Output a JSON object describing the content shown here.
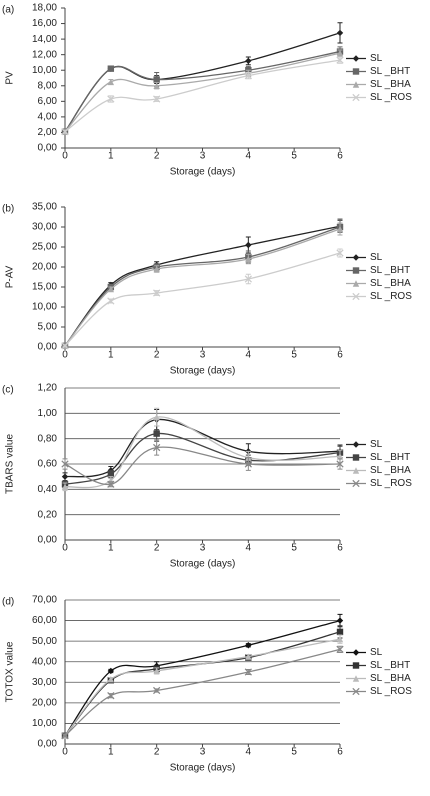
{
  "chart_data": [
    {
      "type": "line",
      "panel_label": "(a)",
      "y_label": "PV",
      "x_label": "Storage (days)",
      "grid": false,
      "x": [
        0,
        1,
        2,
        4,
        6
      ],
      "xlim": [
        0,
        6
      ],
      "xticks": [
        0,
        1,
        2,
        3,
        4,
        5,
        6
      ],
      "ylim": [
        0,
        18
      ],
      "yticks": [
        {
          "value": 0,
          "label": "0,00"
        },
        {
          "value": 2,
          "label": "2,00"
        },
        {
          "value": 4,
          "label": "4,00"
        },
        {
          "value": 6,
          "label": "6,00"
        },
        {
          "value": 8,
          "label": "8,00"
        },
        {
          "value": 10,
          "label": "10,00"
        },
        {
          "value": 12,
          "label": "12,00"
        },
        {
          "value": 14,
          "label": "14,00"
        },
        {
          "value": 16,
          "label": "16,00"
        },
        {
          "value": 18,
          "label": "18,00"
        }
      ],
      "series": [
        {
          "name": "SL",
          "color": "#222222",
          "marker": "diamond",
          "values": [
            2.1,
            10.2,
            8.8,
            11.2,
            14.8
          ],
          "errors": [
            0.2,
            0.3,
            0.5,
            0.5,
            1.3
          ]
        },
        {
          "name": "SL _BHT",
          "color": "#666666",
          "marker": "square",
          "values": [
            2.1,
            10.2,
            8.8,
            10.0,
            12.4
          ],
          "errors": [
            0.2,
            0.3,
            0.9,
            0.5,
            0.6
          ]
        },
        {
          "name": "SL _BHA",
          "color": "#aaaaaa",
          "marker": "triangle",
          "values": [
            2.1,
            8.5,
            8.0,
            9.6,
            12.2
          ],
          "errors": [
            0.2,
            0.3,
            0.4,
            0.4,
            0.4
          ]
        },
        {
          "name": "SL _ROS",
          "color": "#cccccc",
          "marker": "cross",
          "values": [
            2.1,
            6.3,
            6.3,
            9.3,
            11.3
          ],
          "errors": [
            0.2,
            0.4,
            0.3,
            0.4,
            0.4
          ]
        }
      ]
    },
    {
      "type": "line",
      "panel_label": "(b)",
      "y_label": "P-AV",
      "x_label": "Storage (days)",
      "grid": false,
      "x": [
        0,
        1,
        2,
        4,
        6
      ],
      "xlim": [
        0,
        6
      ],
      "xticks": [
        0,
        1,
        2,
        3,
        4,
        5,
        6
      ],
      "ylim": [
        0,
        35
      ],
      "yticks": [
        {
          "value": 0,
          "label": "0,00"
        },
        {
          "value": 5,
          "label": "5,00"
        },
        {
          "value": 10,
          "label": "10,00"
        },
        {
          "value": 15,
          "label": "15,00"
        },
        {
          "value": 20,
          "label": "20,00"
        },
        {
          "value": 25,
          "label": "25,00"
        },
        {
          "value": 30,
          "label": "30,00"
        },
        {
          "value": 35,
          "label": "35,00"
        }
      ],
      "series": [
        {
          "name": "SL",
          "color": "#222222",
          "marker": "diamond",
          "values": [
            0.3,
            15.5,
            20.5,
            25.5,
            30.2
          ],
          "errors": [
            0.2,
            0.6,
            0.8,
            2.0,
            1.5
          ]
        },
        {
          "name": "SL _BHT",
          "color": "#666666",
          "marker": "square",
          "values": [
            0.3,
            15.0,
            20.0,
            22.5,
            30.0
          ],
          "errors": [
            0.2,
            0.6,
            0.8,
            1.5,
            2.0
          ]
        },
        {
          "name": "SL _BHA",
          "color": "#aaaaaa",
          "marker": "triangle",
          "values": [
            0.3,
            14.5,
            19.5,
            22.0,
            29.5
          ],
          "errors": [
            0.2,
            0.5,
            0.8,
            1.2,
            1.5
          ]
        },
        {
          "name": "SL _ROS",
          "color": "#cccccc",
          "marker": "cross",
          "values": [
            0.3,
            11.5,
            13.5,
            17.0,
            23.5
          ],
          "errors": [
            0.2,
            0.5,
            0.6,
            1.2,
            1.0
          ]
        }
      ]
    },
    {
      "type": "line",
      "panel_label": "(c)",
      "y_label": "TBARS value",
      "x_label": "Storage (days)",
      "grid": true,
      "x": [
        0,
        1,
        2,
        4,
        6
      ],
      "xlim": [
        0,
        6
      ],
      "xticks": [
        0,
        1,
        2,
        3,
        4,
        5,
        6
      ],
      "ylim": [
        0,
        1.2
      ],
      "yticks": [
        {
          "value": 0,
          "label": "0,00"
        },
        {
          "value": 0.2,
          "label": "0,20"
        },
        {
          "value": 0.4,
          "label": "0,40"
        },
        {
          "value": 0.6,
          "label": "0,60"
        },
        {
          "value": 0.8,
          "label": "0,80"
        },
        {
          "value": 1.0,
          "label": "1,00"
        },
        {
          "value": 1.2,
          "label": "1,20"
        }
      ],
      "series": [
        {
          "name": "SL",
          "color": "#222222",
          "marker": "diamond",
          "values": [
            0.5,
            0.55,
            0.95,
            0.7,
            0.7
          ],
          "errors": [
            0.03,
            0.03,
            0.08,
            0.06,
            0.05
          ]
        },
        {
          "name": "SL _BHT",
          "color": "#444444",
          "marker": "square",
          "values": [
            0.44,
            0.52,
            0.84,
            0.63,
            0.69
          ],
          "errors": [
            0.03,
            0.03,
            0.06,
            0.04,
            0.05
          ]
        },
        {
          "name": "SL _BHA",
          "color": "#bbbbbb",
          "marker": "triangle",
          "values": [
            0.42,
            0.47,
            0.97,
            0.65,
            0.66
          ],
          "errors": [
            0.03,
            0.03,
            0.07,
            0.05,
            0.05
          ]
        },
        {
          "name": "SL _ROS",
          "color": "#888888",
          "marker": "cross",
          "values": [
            0.6,
            0.44,
            0.73,
            0.6,
            0.6
          ],
          "errors": [
            0.04,
            0.02,
            0.06,
            0.05,
            0.04
          ]
        }
      ]
    },
    {
      "type": "line",
      "panel_label": "(d)",
      "y_label": "TOTOX value",
      "x_label": "Storage (days)",
      "grid": true,
      "x": [
        0,
        1,
        2,
        4,
        6
      ],
      "xlim": [
        0,
        6
      ],
      "xticks": [
        0,
        1,
        2,
        3,
        4,
        5,
        6
      ],
      "ylim": [
        0,
        70
      ],
      "yticks": [
        {
          "value": 0,
          "label": "0,00"
        },
        {
          "value": 10,
          "label": "10,00"
        },
        {
          "value": 20,
          "label": "20,00"
        },
        {
          "value": 30,
          "label": "30,00"
        },
        {
          "value": 40,
          "label": "40,00"
        },
        {
          "value": 50,
          "label": "50,00"
        },
        {
          "value": 60,
          "label": "60,00"
        },
        {
          "value": 70,
          "label": "70,00"
        }
      ],
      "series": [
        {
          "name": "SL",
          "color": "#111111",
          "marker": "diamond",
          "values": [
            4.0,
            35.5,
            38.0,
            48.0,
            60.0
          ],
          "errors": [
            0.5,
            0.8,
            2.0,
            0.8,
            3.0
          ]
        },
        {
          "name": "SL _BHT",
          "color": "#333333",
          "marker": "square",
          "values": [
            4.0,
            31.0,
            36.5,
            42.0,
            54.5
          ],
          "errors": [
            0.5,
            0.8,
            1.5,
            1.0,
            3.0
          ]
        },
        {
          "name": "SL _BHA",
          "color": "#bbbbbb",
          "marker": "triangle",
          "values": [
            4.0,
            31.5,
            35.5,
            42.5,
            51.0
          ],
          "errors": [
            0.5,
            0.8,
            1.5,
            1.0,
            2.0
          ]
        },
        {
          "name": "SL _ROS",
          "color": "#888888",
          "marker": "cross",
          "values": [
            4.0,
            23.5,
            26.0,
            35.0,
            46.0
          ],
          "errors": [
            0.5,
            1.0,
            0.8,
            1.2,
            1.5
          ]
        }
      ]
    }
  ]
}
